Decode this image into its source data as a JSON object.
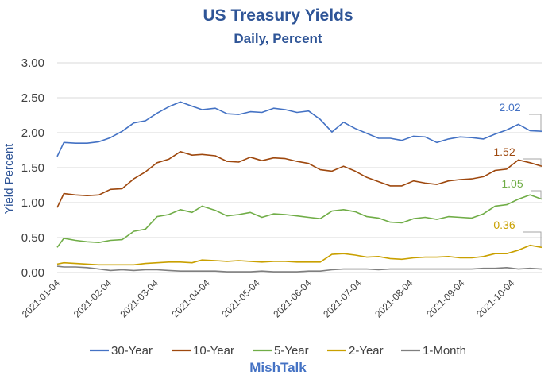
{
  "chart_data": {
    "type": "line",
    "title": "US Treasury Yields",
    "subtitle": "Daily, Percent",
    "ylabel": "Yield Percent",
    "xlabel": "",
    "ylim": [
      0,
      3
    ],
    "yticks": [
      "0.00",
      "0.50",
      "1.00",
      "1.50",
      "2.00",
      "2.50",
      "3.00"
    ],
    "xlim": [
      "2021-01-04",
      "2021-10-22"
    ],
    "xticks": [
      "2021-01-04",
      "2021-02-04",
      "2021-03-04",
      "2021-04-04",
      "2021-05-04",
      "2021-06-04",
      "2021-07-04",
      "2021-08-04",
      "2021-09-04",
      "2021-10-04"
    ],
    "grid": "horizontal",
    "legend_position": "bottom",
    "series": [
      {
        "name": "30-Year",
        "color": "#4472c4",
        "end_label": "2.02",
        "points": [
          [
            "2021-01-04",
            1.66
          ],
          [
            "2021-01-08",
            1.86
          ],
          [
            "2021-01-15",
            1.85
          ],
          [
            "2021-01-22",
            1.85
          ],
          [
            "2021-01-29",
            1.87
          ],
          [
            "2021-02-05",
            1.93
          ],
          [
            "2021-02-12",
            2.02
          ],
          [
            "2021-02-19",
            2.14
          ],
          [
            "2021-02-26",
            2.17
          ],
          [
            "2021-03-05",
            2.28
          ],
          [
            "2021-03-12",
            2.37
          ],
          [
            "2021-03-19",
            2.44
          ],
          [
            "2021-03-26",
            2.38
          ],
          [
            "2021-04-01",
            2.33
          ],
          [
            "2021-04-09",
            2.35
          ],
          [
            "2021-04-16",
            2.27
          ],
          [
            "2021-04-23",
            2.26
          ],
          [
            "2021-04-30",
            2.3
          ],
          [
            "2021-05-07",
            2.29
          ],
          [
            "2021-05-14",
            2.35
          ],
          [
            "2021-05-21",
            2.33
          ],
          [
            "2021-05-28",
            2.29
          ],
          [
            "2021-06-04",
            2.31
          ],
          [
            "2021-06-11",
            2.19
          ],
          [
            "2021-06-18",
            2.01
          ],
          [
            "2021-06-25",
            2.15
          ],
          [
            "2021-07-02",
            2.06
          ],
          [
            "2021-07-09",
            1.99
          ],
          [
            "2021-07-16",
            1.92
          ],
          [
            "2021-07-23",
            1.92
          ],
          [
            "2021-07-30",
            1.89
          ],
          [
            "2021-08-06",
            1.95
          ],
          [
            "2021-08-13",
            1.94
          ],
          [
            "2021-08-20",
            1.86
          ],
          [
            "2021-08-27",
            1.91
          ],
          [
            "2021-09-03",
            1.94
          ],
          [
            "2021-09-10",
            1.93
          ],
          [
            "2021-09-17",
            1.91
          ],
          [
            "2021-09-24",
            1.98
          ],
          [
            "2021-10-01",
            2.04
          ],
          [
            "2021-10-08",
            2.12
          ],
          [
            "2021-10-15",
            2.03
          ],
          [
            "2021-10-22",
            2.02
          ]
        ]
      },
      {
        "name": "10-Year",
        "color": "#9e480e",
        "end_label": "1.52",
        "points": [
          [
            "2021-01-04",
            0.93
          ],
          [
            "2021-01-08",
            1.13
          ],
          [
            "2021-01-15",
            1.11
          ],
          [
            "2021-01-22",
            1.1
          ],
          [
            "2021-01-29",
            1.11
          ],
          [
            "2021-02-05",
            1.19
          ],
          [
            "2021-02-12",
            1.2
          ],
          [
            "2021-02-19",
            1.34
          ],
          [
            "2021-02-26",
            1.44
          ],
          [
            "2021-03-05",
            1.57
          ],
          [
            "2021-03-12",
            1.62
          ],
          [
            "2021-03-19",
            1.73
          ],
          [
            "2021-03-26",
            1.68
          ],
          [
            "2021-04-01",
            1.69
          ],
          [
            "2021-04-09",
            1.67
          ],
          [
            "2021-04-16",
            1.59
          ],
          [
            "2021-04-23",
            1.58
          ],
          [
            "2021-04-30",
            1.65
          ],
          [
            "2021-05-07",
            1.6
          ],
          [
            "2021-05-14",
            1.64
          ],
          [
            "2021-05-21",
            1.63
          ],
          [
            "2021-05-28",
            1.59
          ],
          [
            "2021-06-04",
            1.56
          ],
          [
            "2021-06-11",
            1.47
          ],
          [
            "2021-06-18",
            1.45
          ],
          [
            "2021-06-25",
            1.52
          ],
          [
            "2021-07-02",
            1.45
          ],
          [
            "2021-07-09",
            1.36
          ],
          [
            "2021-07-16",
            1.3
          ],
          [
            "2021-07-23",
            1.24
          ],
          [
            "2021-07-30",
            1.24
          ],
          [
            "2021-08-06",
            1.31
          ],
          [
            "2021-08-13",
            1.28
          ],
          [
            "2021-08-20",
            1.26
          ],
          [
            "2021-08-27",
            1.31
          ],
          [
            "2021-09-03",
            1.33
          ],
          [
            "2021-09-10",
            1.34
          ],
          [
            "2021-09-17",
            1.37
          ],
          [
            "2021-09-24",
            1.46
          ],
          [
            "2021-10-01",
            1.48
          ],
          [
            "2021-10-08",
            1.61
          ],
          [
            "2021-10-15",
            1.57
          ],
          [
            "2021-10-22",
            1.52
          ]
        ]
      },
      {
        "name": "5-Year",
        "color": "#70ad47",
        "end_label": "1.05",
        "points": [
          [
            "2021-01-04",
            0.36
          ],
          [
            "2021-01-08",
            0.49
          ],
          [
            "2021-01-15",
            0.46
          ],
          [
            "2021-01-22",
            0.44
          ],
          [
            "2021-01-29",
            0.43
          ],
          [
            "2021-02-05",
            0.46
          ],
          [
            "2021-02-12",
            0.47
          ],
          [
            "2021-02-19",
            0.59
          ],
          [
            "2021-02-26",
            0.62
          ],
          [
            "2021-03-05",
            0.8
          ],
          [
            "2021-03-12",
            0.83
          ],
          [
            "2021-03-19",
            0.9
          ],
          [
            "2021-03-26",
            0.86
          ],
          [
            "2021-04-01",
            0.95
          ],
          [
            "2021-04-09",
            0.89
          ],
          [
            "2021-04-16",
            0.81
          ],
          [
            "2021-04-23",
            0.83
          ],
          [
            "2021-04-30",
            0.86
          ],
          [
            "2021-05-07",
            0.79
          ],
          [
            "2021-05-14",
            0.84
          ],
          [
            "2021-05-21",
            0.83
          ],
          [
            "2021-05-28",
            0.81
          ],
          [
            "2021-06-04",
            0.79
          ],
          [
            "2021-06-11",
            0.77
          ],
          [
            "2021-06-18",
            0.88
          ],
          [
            "2021-06-25",
            0.9
          ],
          [
            "2021-07-02",
            0.87
          ],
          [
            "2021-07-09",
            0.8
          ],
          [
            "2021-07-16",
            0.78
          ],
          [
            "2021-07-23",
            0.72
          ],
          [
            "2021-07-30",
            0.71
          ],
          [
            "2021-08-06",
            0.77
          ],
          [
            "2021-08-13",
            0.79
          ],
          [
            "2021-08-20",
            0.76
          ],
          [
            "2021-08-27",
            0.8
          ],
          [
            "2021-09-03",
            0.79
          ],
          [
            "2021-09-10",
            0.78
          ],
          [
            "2021-09-17",
            0.84
          ],
          [
            "2021-09-24",
            0.95
          ],
          [
            "2021-10-01",
            0.97
          ],
          [
            "2021-10-08",
            1.05
          ],
          [
            "2021-10-15",
            1.11
          ],
          [
            "2021-10-22",
            1.05
          ]
        ]
      },
      {
        "name": "2-Year",
        "color": "#c9a000",
        "end_label": "0.36",
        "points": [
          [
            "2021-01-04",
            0.12
          ],
          [
            "2021-01-08",
            0.14
          ],
          [
            "2021-01-15",
            0.13
          ],
          [
            "2021-01-22",
            0.12
          ],
          [
            "2021-01-29",
            0.11
          ],
          [
            "2021-02-05",
            0.11
          ],
          [
            "2021-02-12",
            0.11
          ],
          [
            "2021-02-19",
            0.11
          ],
          [
            "2021-02-26",
            0.13
          ],
          [
            "2021-03-05",
            0.14
          ],
          [
            "2021-03-12",
            0.15
          ],
          [
            "2021-03-19",
            0.15
          ],
          [
            "2021-03-26",
            0.14
          ],
          [
            "2021-04-01",
            0.18
          ],
          [
            "2021-04-09",
            0.17
          ],
          [
            "2021-04-16",
            0.16
          ],
          [
            "2021-04-23",
            0.17
          ],
          [
            "2021-04-30",
            0.16
          ],
          [
            "2021-05-07",
            0.15
          ],
          [
            "2021-05-14",
            0.16
          ],
          [
            "2021-05-21",
            0.16
          ],
          [
            "2021-05-28",
            0.15
          ],
          [
            "2021-06-04",
            0.15
          ],
          [
            "2021-06-11",
            0.15
          ],
          [
            "2021-06-18",
            0.26
          ],
          [
            "2021-06-25",
            0.27
          ],
          [
            "2021-07-02",
            0.25
          ],
          [
            "2021-07-09",
            0.22
          ],
          [
            "2021-07-16",
            0.23
          ],
          [
            "2021-07-23",
            0.2
          ],
          [
            "2021-07-30",
            0.19
          ],
          [
            "2021-08-06",
            0.21
          ],
          [
            "2021-08-13",
            0.22
          ],
          [
            "2021-08-20",
            0.22
          ],
          [
            "2021-08-27",
            0.23
          ],
          [
            "2021-09-03",
            0.21
          ],
          [
            "2021-09-10",
            0.21
          ],
          [
            "2021-09-17",
            0.23
          ],
          [
            "2021-09-24",
            0.27
          ],
          [
            "2021-10-01",
            0.27
          ],
          [
            "2021-10-08",
            0.32
          ],
          [
            "2021-10-15",
            0.39
          ],
          [
            "2021-10-22",
            0.36
          ]
        ]
      },
      {
        "name": "1-Month",
        "color": "#7f7f7f",
        "end_label": "",
        "points": [
          [
            "2021-01-04",
            0.09
          ],
          [
            "2021-01-08",
            0.08
          ],
          [
            "2021-01-15",
            0.08
          ],
          [
            "2021-01-22",
            0.07
          ],
          [
            "2021-01-29",
            0.05
          ],
          [
            "2021-02-05",
            0.03
          ],
          [
            "2021-02-12",
            0.04
          ],
          [
            "2021-02-19",
            0.03
          ],
          [
            "2021-02-26",
            0.04
          ],
          [
            "2021-03-05",
            0.04
          ],
          [
            "2021-03-12",
            0.03
          ],
          [
            "2021-03-19",
            0.02
          ],
          [
            "2021-03-26",
            0.02
          ],
          [
            "2021-04-01",
            0.02
          ],
          [
            "2021-04-09",
            0.02
          ],
          [
            "2021-04-16",
            0.01
          ],
          [
            "2021-04-23",
            0.01
          ],
          [
            "2021-04-30",
            0.01
          ],
          [
            "2021-05-07",
            0.02
          ],
          [
            "2021-05-14",
            0.01
          ],
          [
            "2021-05-21",
            0.01
          ],
          [
            "2021-05-28",
            0.01
          ],
          [
            "2021-06-04",
            0.02
          ],
          [
            "2021-06-11",
            0.02
          ],
          [
            "2021-06-18",
            0.04
          ],
          [
            "2021-06-25",
            0.05
          ],
          [
            "2021-07-02",
            0.05
          ],
          [
            "2021-07-09",
            0.05
          ],
          [
            "2021-07-16",
            0.04
          ],
          [
            "2021-07-23",
            0.05
          ],
          [
            "2021-07-30",
            0.05
          ],
          [
            "2021-08-06",
            0.05
          ],
          [
            "2021-08-13",
            0.05
          ],
          [
            "2021-08-20",
            0.05
          ],
          [
            "2021-08-27",
            0.05
          ],
          [
            "2021-09-03",
            0.05
          ],
          [
            "2021-09-10",
            0.05
          ],
          [
            "2021-09-17",
            0.06
          ],
          [
            "2021-09-24",
            0.06
          ],
          [
            "2021-10-01",
            0.07
          ],
          [
            "2021-10-08",
            0.05
          ],
          [
            "2021-10-15",
            0.06
          ],
          [
            "2021-10-22",
            0.05
          ]
        ]
      }
    ]
  },
  "brand": "MishTalk"
}
